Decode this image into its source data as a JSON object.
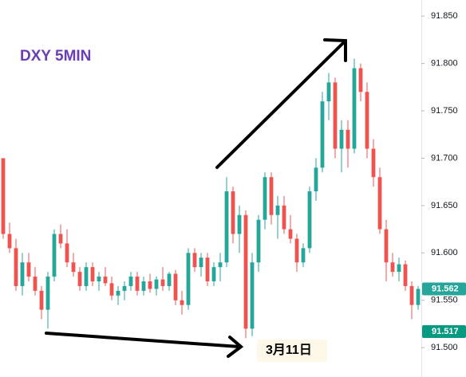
{
  "chart_data": {
    "type": "candlestick",
    "title": "DXY 5MIN",
    "annotation": "3月11日",
    "up_color": "#26a69a",
    "down_color": "#ef5350",
    "ylim": [
      91.469,
      91.867
    ],
    "yticks": [
      {
        "value": 91.5,
        "label": "91.500"
      },
      {
        "value": 91.55,
        "label": "91.550"
      },
      {
        "value": 91.6,
        "label": "91.600"
      },
      {
        "value": 91.65,
        "label": "91.650"
      },
      {
        "value": 91.7,
        "label": "91.700"
      },
      {
        "value": 91.75,
        "label": "91.750"
      },
      {
        "value": 91.8,
        "label": "91.800"
      },
      {
        "value": 91.85,
        "label": "91.850"
      }
    ],
    "price_tags": [
      {
        "value": 91.562,
        "label": "91.562",
        "color": "#26a69a"
      },
      {
        "value": 91.517,
        "label": "91.517",
        "color": "#089981"
      }
    ],
    "open": [
      91.7,
      91.62,
      91.605,
      91.565,
      91.59,
      91.575,
      91.56,
      91.54,
      91.575,
      91.62,
      91.61,
      91.59,
      91.58,
      91.565,
      91.585,
      91.57,
      91.575,
      91.568,
      91.555,
      91.56,
      91.565,
      91.575,
      91.56,
      91.57,
      91.562,
      91.572,
      91.565,
      91.578,
      91.55,
      91.545,
      91.6,
      91.585,
      91.595,
      91.57,
      91.585,
      91.59,
      91.665,
      91.62,
      91.64,
      91.52,
      91.59,
      91.635,
      91.68,
      91.64,
      91.65,
      91.625,
      91.615,
      91.59,
      91.605,
      91.665,
      91.69,
      91.76,
      91.78,
      91.71,
      91.73,
      91.71,
      91.795,
      91.77,
      91.71,
      91.68,
      91.625,
      91.59,
      91.58,
      91.588,
      91.565,
      91.545
    ],
    "high": [
      91.7,
      91.632,
      91.615,
      91.6,
      91.6,
      91.585,
      91.565,
      91.58,
      91.625,
      91.63,
      91.625,
      91.6,
      91.585,
      91.59,
      91.59,
      91.58,
      91.585,
      91.575,
      91.565,
      91.57,
      91.58,
      91.58,
      91.575,
      91.578,
      91.575,
      91.585,
      91.58,
      91.582,
      91.56,
      91.605,
      91.605,
      91.6,
      91.6,
      91.59,
      91.6,
      91.68,
      91.67,
      91.65,
      91.645,
      91.6,
      91.64,
      91.685,
      91.685,
      91.66,
      91.66,
      91.64,
      91.62,
      91.61,
      91.67,
      91.7,
      91.77,
      91.79,
      91.785,
      91.74,
      91.74,
      91.805,
      91.8,
      91.78,
      91.72,
      91.69,
      91.635,
      91.6,
      91.595,
      91.592,
      91.57,
      91.565
    ],
    "low": [
      91.615,
      91.6,
      91.56,
      91.555,
      91.57,
      91.555,
      91.53,
      91.52,
      91.57,
      91.605,
      91.585,
      91.575,
      91.56,
      91.56,
      91.565,
      91.56,
      91.565,
      91.55,
      91.545,
      91.55,
      91.56,
      91.555,
      91.555,
      91.558,
      91.555,
      91.56,
      91.56,
      91.545,
      91.535,
      91.54,
      91.58,
      91.575,
      91.565,
      91.565,
      91.57,
      91.585,
      91.61,
      91.6,
      91.51,
      91.512,
      91.58,
      91.625,
      91.63,
      91.615,
      91.62,
      91.61,
      91.58,
      91.585,
      91.6,
      91.655,
      91.685,
      91.74,
      91.7,
      91.685,
      91.69,
      91.705,
      91.76,
      91.7,
      91.67,
      91.62,
      91.57,
      91.575,
      91.57,
      91.56,
      91.53,
      91.54
    ],
    "close": [
      91.62,
      91.605,
      91.565,
      91.59,
      91.575,
      91.56,
      91.54,
      91.575,
      91.62,
      91.61,
      91.59,
      91.58,
      91.565,
      91.585,
      91.57,
      91.575,
      91.568,
      91.555,
      91.56,
      91.565,
      91.575,
      91.56,
      91.57,
      91.562,
      91.572,
      91.565,
      91.578,
      91.55,
      91.545,
      91.6,
      91.585,
      91.595,
      91.57,
      91.585,
      91.59,
      91.665,
      91.62,
      91.64,
      91.52,
      91.59,
      91.635,
      91.68,
      91.64,
      91.65,
      91.625,
      91.615,
      91.59,
      91.605,
      91.665,
      91.69,
      91.76,
      91.78,
      91.71,
      91.73,
      91.71,
      91.795,
      91.77,
      91.71,
      91.68,
      91.625,
      91.59,
      91.58,
      91.588,
      91.565,
      91.545,
      91.562
    ]
  }
}
